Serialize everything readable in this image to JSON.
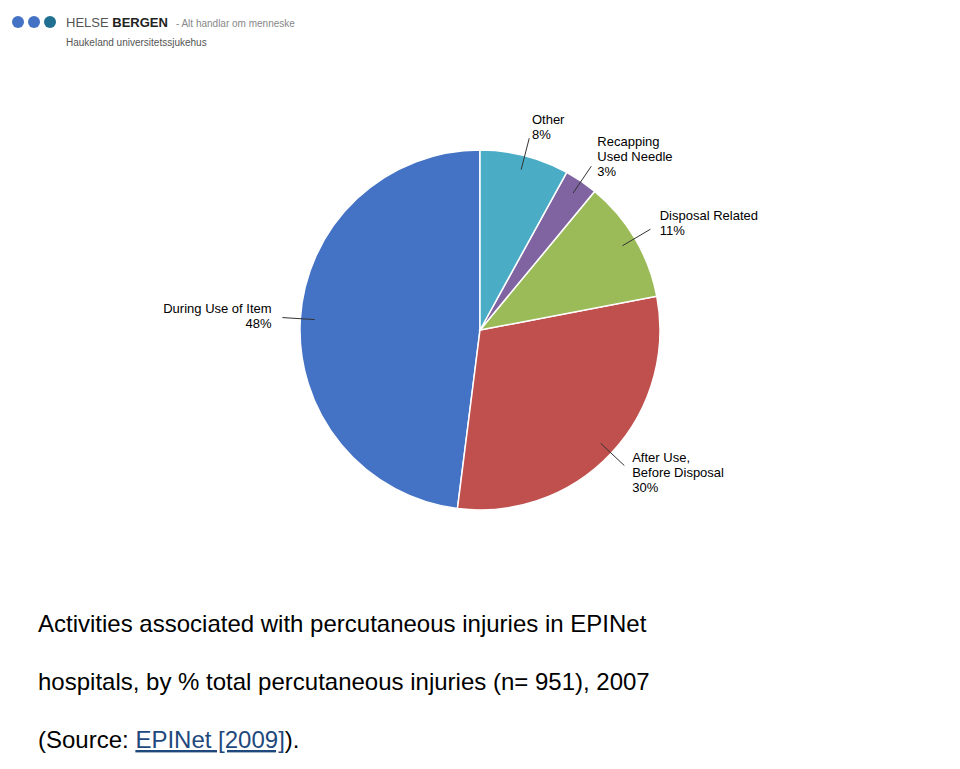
{
  "chart_data": {
    "type": "pie",
    "categories": [
      "During Use of Item",
      "After Use,\nBefore Disposal",
      "Disposal Related",
      "Recapping\nUsed Needle",
      "Other"
    ],
    "values": [
      48,
      30,
      11,
      3,
      8
    ],
    "value_labels": [
      "48%",
      "30%",
      "11%",
      "3%",
      "8%"
    ],
    "colors": [
      "#4472C4",
      "#C0504D",
      "#9BBB59",
      "#8064A2",
      "#4BACC6"
    ],
    "annotations": [
      "Activities associated with percutaneous injuries in EPINet",
      "hospitals, by % total percutaneous injuries (n= 951), 2007",
      "(Source: ",
      "EPINet [2009]",
      ")."
    ],
    "logo": {
      "texts": [
        "HELSE ",
        "BERGEN",
        "- Alt handlar om menneske",
        "Haukeland universitetssjukehus"
      ],
      "colors": [
        "#4472C4",
        "#4472C4",
        "#1F7091"
      ]
    }
  }
}
